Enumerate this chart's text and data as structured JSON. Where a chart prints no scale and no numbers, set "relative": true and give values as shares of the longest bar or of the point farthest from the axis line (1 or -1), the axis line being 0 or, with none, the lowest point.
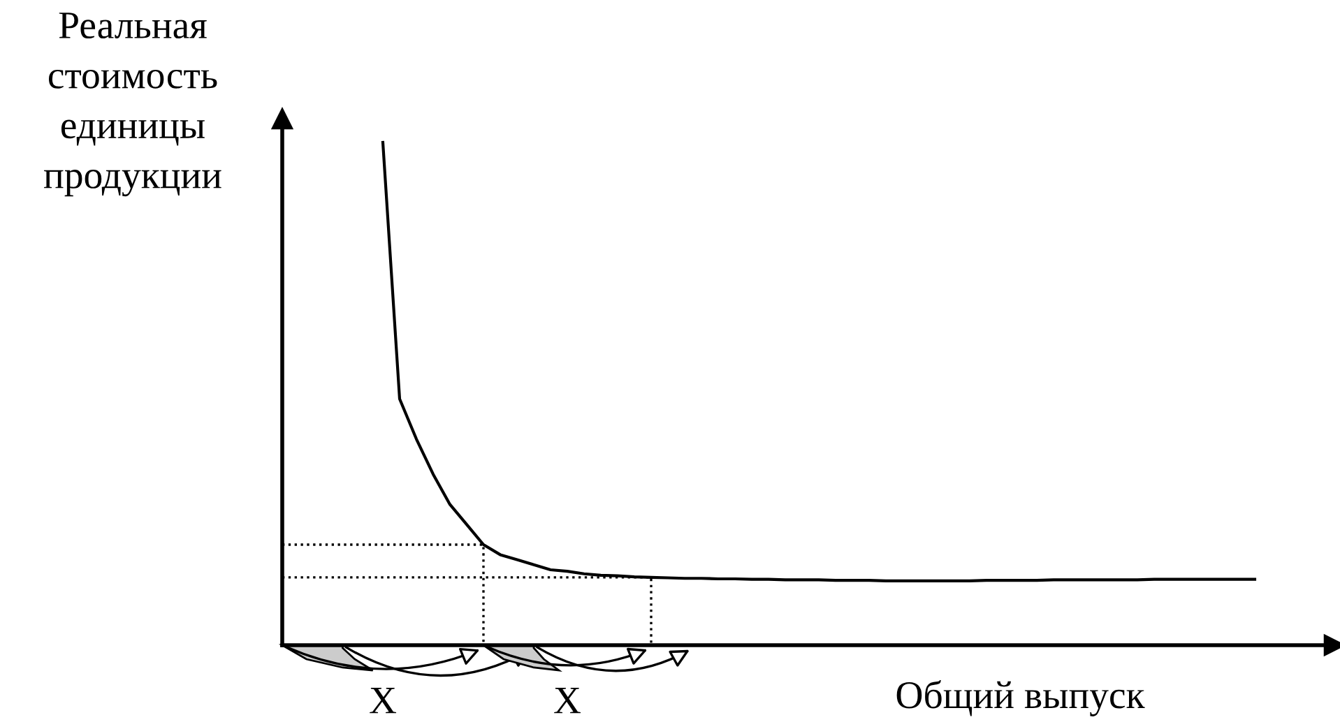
{
  "chart_data": {
    "type": "line",
    "relative": true,
    "ylabel": "Реальная\nстоимость\nединицы\nпродукции",
    "xlabel": "Общий выпуск",
    "annotations": [
      "X",
      "X"
    ],
    "categories": [
      null,
      null,
      null,
      null,
      null,
      null,
      null,
      null,
      null,
      null,
      null,
      null,
      null,
      null,
      null,
      null,
      null,
      null,
      null,
      null,
      null,
      null,
      null,
      null,
      null,
      null,
      null,
      null,
      null,
      null,
      null,
      null,
      null,
      null,
      null,
      null,
      null,
      null,
      null,
      null,
      null,
      null,
      null,
      null,
      null,
      null,
      null,
      null,
      null,
      null,
      null,
      null,
      null
    ],
    "legend": false,
    "marker": "none",
    "line_style": "solid",
    "ref_lines": [
      {
        "axis": "y",
        "value": 0.2,
        "label": null,
        "color": "#000000",
        "line_style": "dotted"
      },
      {
        "axis": "y",
        "value": 0.135,
        "label": null,
        "color": "#000000",
        "line_style": "dotted"
      }
    ],
    "series": [
      {
        "color": "#000000",
        "values": [
          1.0,
          0.49,
          0.41,
          0.34,
          0.28,
          0.24,
          0.2,
          0.18,
          0.17,
          0.16,
          0.15,
          0.147,
          0.142,
          0.139,
          0.138,
          0.136,
          0.135,
          0.134,
          0.133,
          0.133,
          0.132,
          0.132,
          0.131,
          0.131,
          0.13,
          0.13,
          0.13,
          0.129,
          0.129,
          0.129,
          0.128,
          0.128,
          0.128,
          0.128,
          0.128,
          0.128,
          0.129,
          0.129,
          0.129,
          0.129,
          0.13,
          0.13,
          0.13,
          0.13,
          0.13,
          0.13,
          0.131,
          0.131,
          0.131,
          0.131,
          0.131,
          0.131,
          0.131
        ]
      }
    ]
  }
}
